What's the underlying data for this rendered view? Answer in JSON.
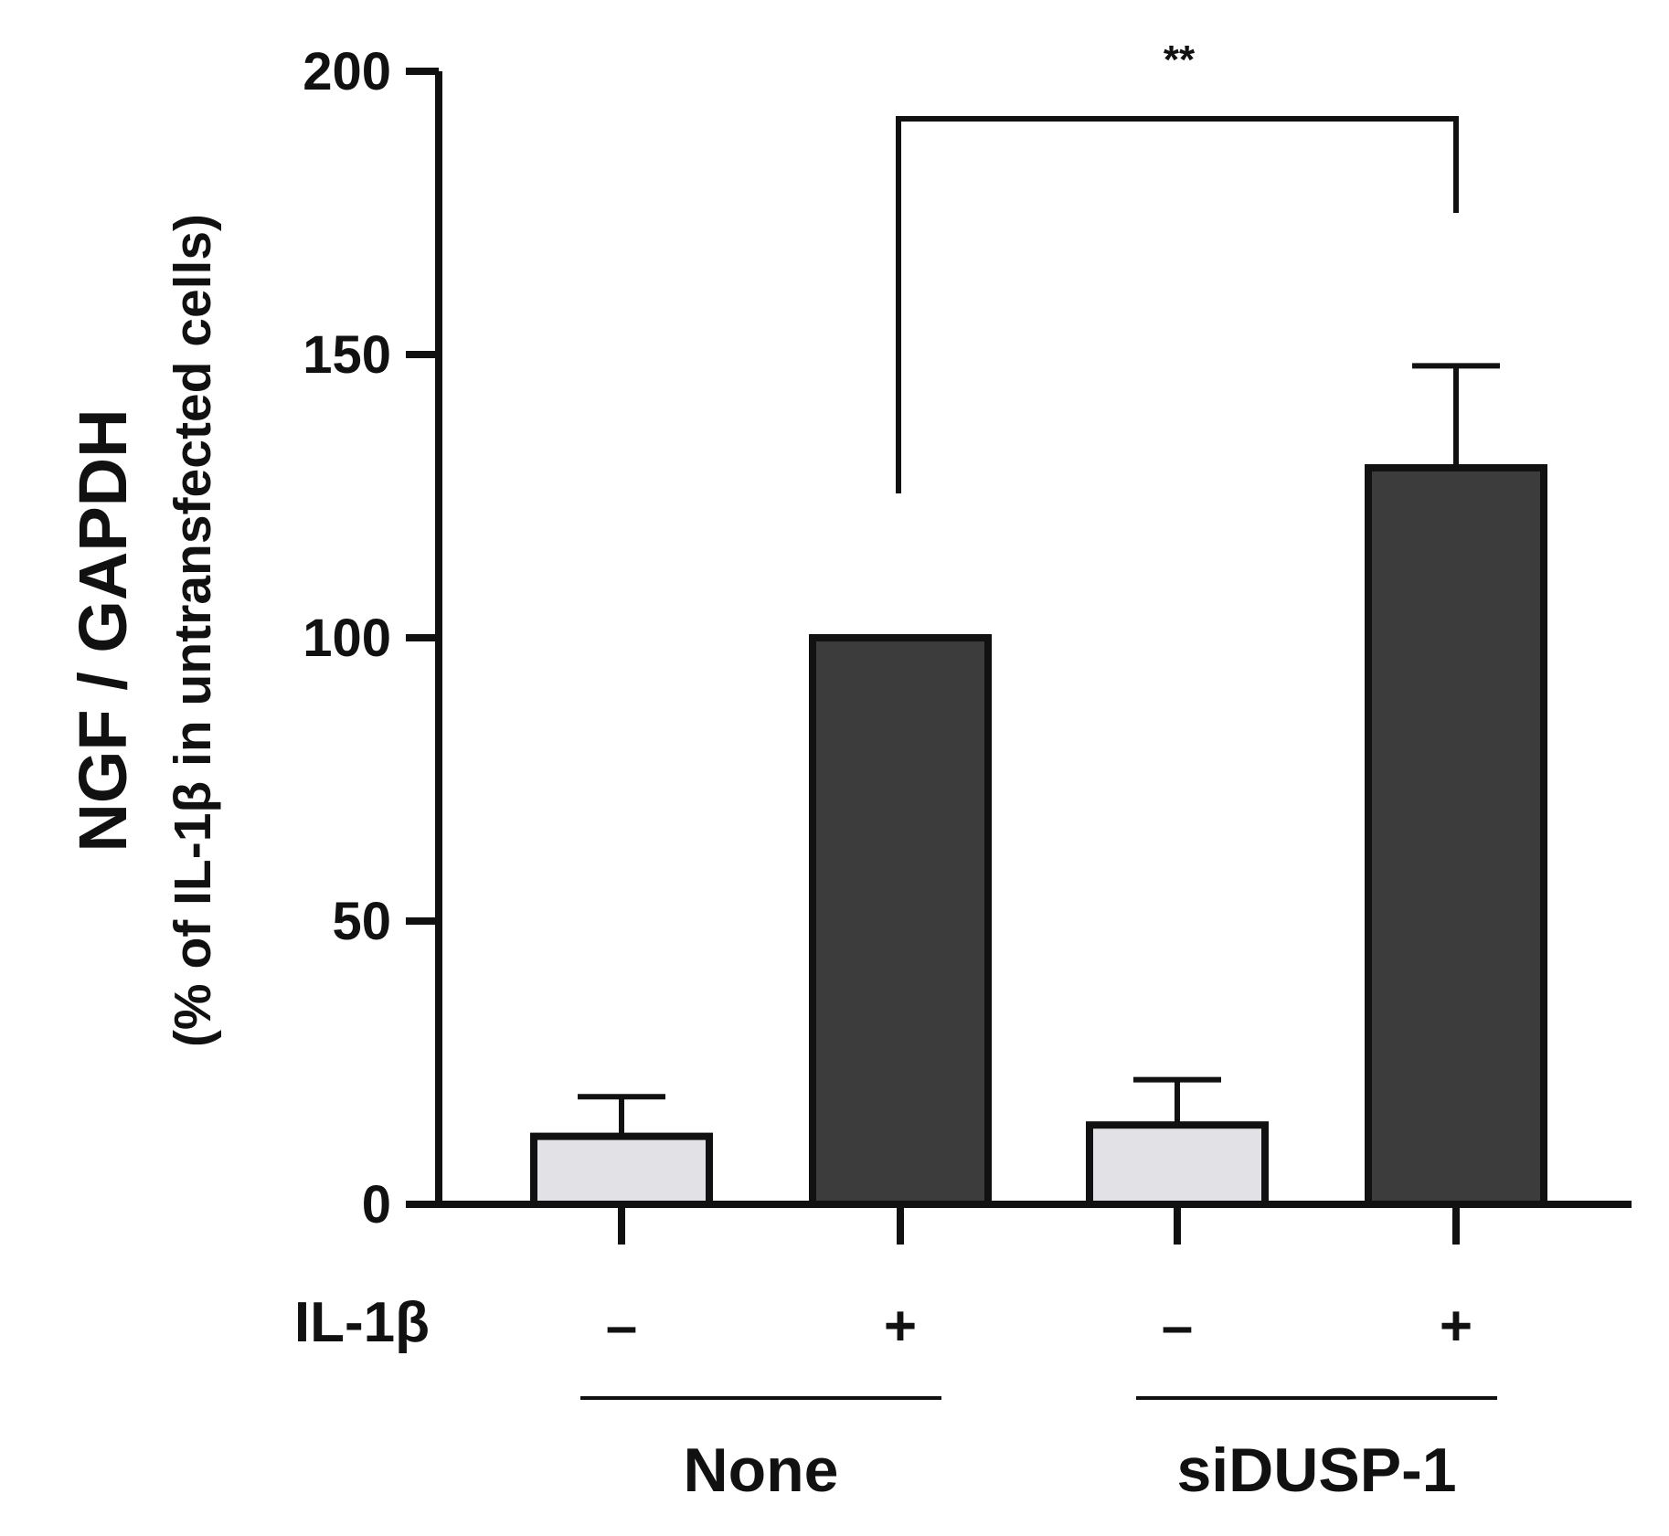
{
  "chart_data": {
    "type": "bar",
    "ylabel_line1": "NGF / GAPDH",
    "ylabel_line2": "(% of IL-1β in untransfected cells)",
    "ylim": [
      0,
      200
    ],
    "yticks": [
      0,
      50,
      100,
      150,
      200
    ],
    "grid": false,
    "legend": "none",
    "treatment_row_label": "IL-1β",
    "bars": [
      {
        "group": "None",
        "il1b": "–",
        "value": 12,
        "error": 7,
        "color": "#e2e2e6"
      },
      {
        "group": "None",
        "il1b": "+",
        "value": 100,
        "error": 0,
        "color": "#3c3c3c"
      },
      {
        "group": "siDUSP-1",
        "il1b": "–",
        "value": 14,
        "error": 8,
        "color": "#e2e2e6"
      },
      {
        "group": "siDUSP-1",
        "il1b": "+",
        "value": 130,
        "error": 18,
        "color": "#3c3c3c"
      }
    ],
    "groups": [
      {
        "label": "None",
        "bars": [
          0,
          1
        ]
      },
      {
        "label": "siDUSP-1",
        "bars": [
          2,
          3
        ]
      }
    ],
    "significance": [
      {
        "from_bar": 1,
        "to_bar": 3,
        "label": "**"
      }
    ]
  }
}
